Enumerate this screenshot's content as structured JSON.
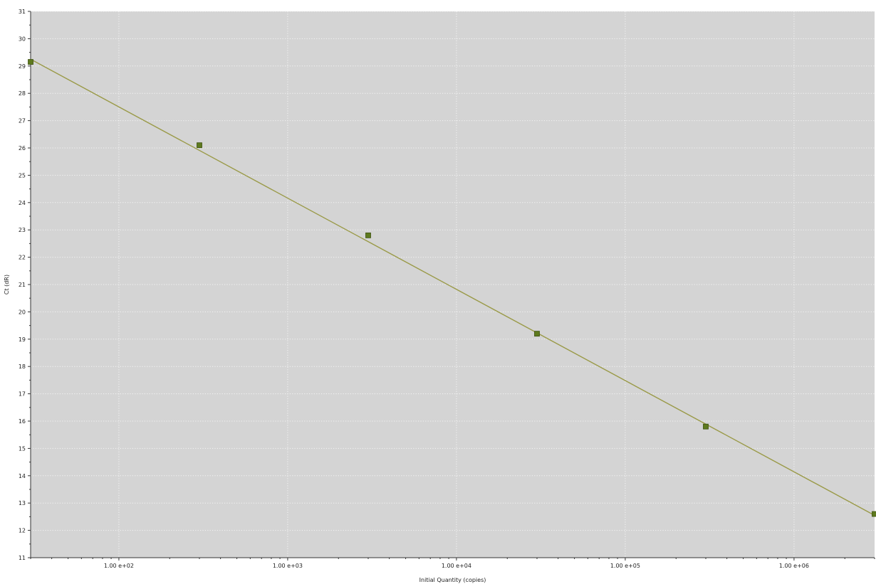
{
  "chart_data": {
    "type": "scatter",
    "title": "",
    "xlabel": "Initial Quantity (copies)",
    "ylabel": "Ct (dR)",
    "x_scale": "log",
    "xlim": [
      30,
      3000000
    ],
    "ylim": [
      11,
      31
    ],
    "x_ticks": [
      100,
      1000,
      10000,
      100000,
      1000000
    ],
    "x_tick_labels": [
      "1.00 e+02",
      "1.00 e+03",
      "1.00 e+04",
      "1.00 e+05",
      "1.00 e+06"
    ],
    "y_ticks": [
      11,
      12,
      13,
      14,
      15,
      16,
      17,
      18,
      19,
      20,
      21,
      22,
      23,
      24,
      25,
      26,
      27,
      28,
      29,
      30,
      31
    ],
    "y_tick_labels": [
      "11",
      "12",
      "13",
      "14",
      "15",
      "16",
      "17",
      "18",
      "19",
      "20",
      "21",
      "22",
      "23",
      "24",
      "25",
      "26",
      "27",
      "28",
      "29",
      "30",
      "31"
    ],
    "grid": true,
    "legend": "none",
    "background_color": "#d4d4d4",
    "marker_color": "#5e7a1e",
    "line_color": "#9a9a48",
    "series": [
      {
        "x": [
          30,
          300,
          3000,
          30000,
          300000,
          3000000
        ],
        "y": [
          29.15,
          26.1,
          22.8,
          19.2,
          15.8,
          12.6
        ]
      }
    ],
    "fit_line": {
      "x": [
        30,
        3000000
      ],
      "y": [
        29.25,
        12.55
      ]
    }
  }
}
